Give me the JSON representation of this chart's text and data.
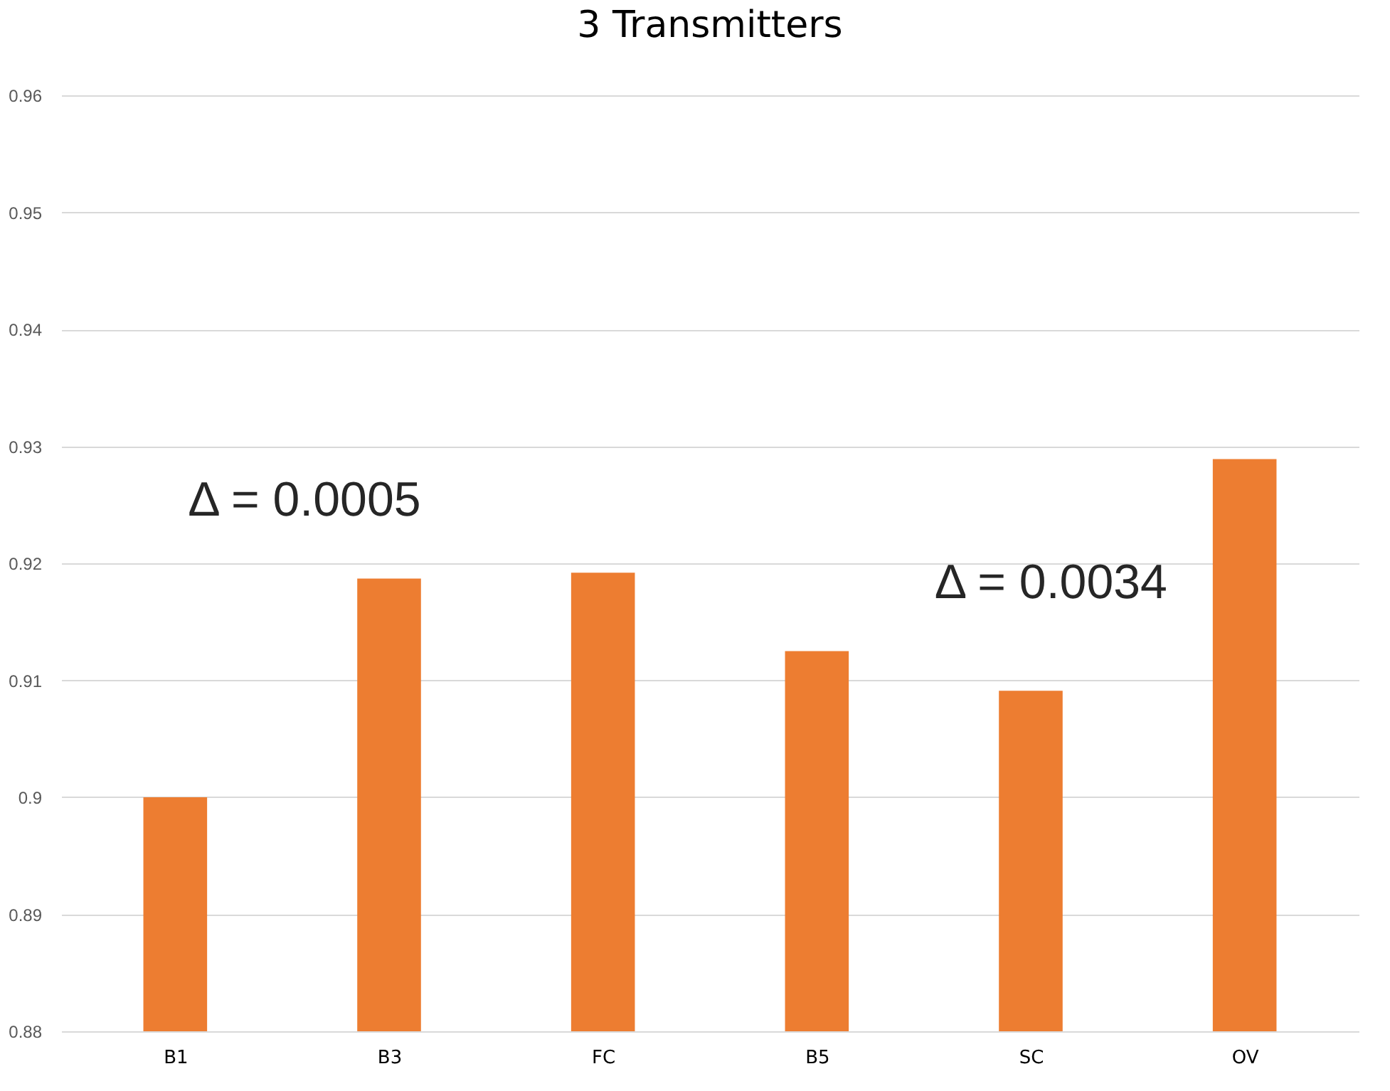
{
  "chart_data": {
    "type": "bar",
    "title": "3 Transmitters",
    "categories": [
      "B1",
      "B3",
      "FC",
      "B5",
      "SC",
      "OV"
    ],
    "values": [
      0.9,
      0.9187,
      0.9192,
      0.9125,
      0.9091,
      0.9289
    ],
    "color": "#ed7d31",
    "ylim": [
      0.88,
      0.96
    ],
    "yticks": [
      0.88,
      0.89,
      0.9,
      0.91,
      0.92,
      0.93,
      0.94,
      0.95,
      0.96
    ],
    "grid": "y",
    "annotations": [
      "Δ = 0.0005",
      "Δ = 0.0034"
    ]
  }
}
